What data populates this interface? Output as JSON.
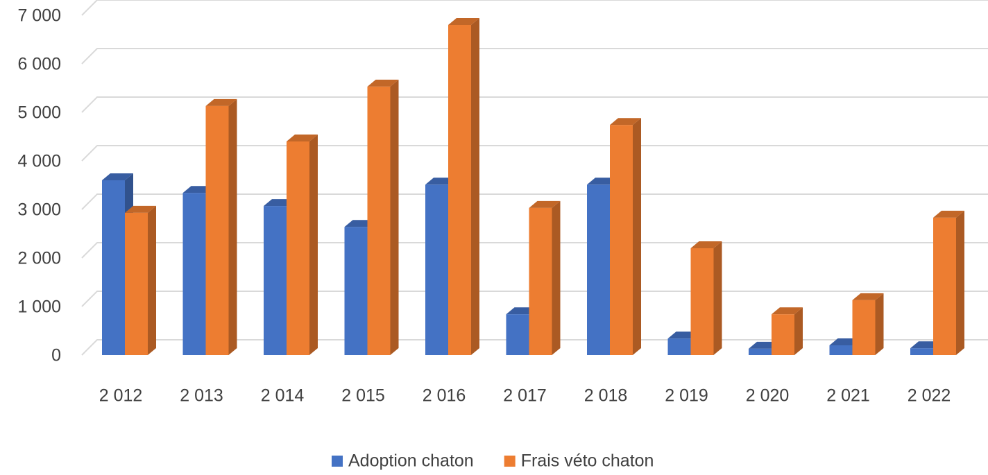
{
  "chart_data": {
    "type": "bar3d",
    "categories": [
      "2 012",
      "2 013",
      "2 014",
      "2 015",
      "2 016",
      "2 017",
      "2 018",
      "2 019",
      "2 020",
      "2 021",
      "2 022"
    ],
    "series": [
      {
        "name": "Adoption chaton",
        "color": "#4472c4",
        "values": [
          3600,
          3340,
          3070,
          2640,
          3510,
          840,
          3510,
          340,
          130,
          200,
          140
        ]
      },
      {
        "name": "Frais véto chaton",
        "color": "#ed7d31",
        "values": [
          2930,
          5130,
          4400,
          5530,
          6800,
          3030,
          4740,
          2200,
          840,
          1130,
          2830
        ]
      }
    ],
    "ylim": [
      0,
      7000
    ],
    "yticks": [
      0,
      {
        "value": 1000,
        "label": "1 000"
      },
      {
        "value": 2000,
        "label": "2 000"
      },
      {
        "value": 3000,
        "label": "3 000"
      },
      {
        "value": 4000,
        "label": "4 000"
      },
      {
        "value": 5000,
        "label": "5 000"
      },
      {
        "value": 6000,
        "label": "6 000"
      },
      {
        "value": 7000,
        "label": "7 000"
      }
    ],
    "grid": true,
    "legend": "bottom"
  }
}
